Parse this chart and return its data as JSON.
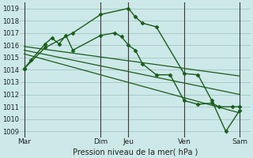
{
  "background_color": "#cce8e8",
  "grid_color": "#aacccc",
  "line_color": "#1a5c1a",
  "marker_color": "#1a5c1a",
  "xlabel": "Pression niveau de la mer( hPa )",
  "ylim": [
    1008.5,
    1019.5
  ],
  "yticks": [
    1009,
    1010,
    1011,
    1012,
    1013,
    1014,
    1015,
    1016,
    1017,
    1018,
    1019
  ],
  "xlim": [
    -0.3,
    16.3
  ],
  "xtick_labels": [
    "Mar",
    "Dim",
    "Jeu",
    "Ven",
    "Sam"
  ],
  "xtick_positions": [
    0,
    5.5,
    7.5,
    11.5,
    15.5
  ],
  "vlines": [
    0,
    5.5,
    7.5,
    11.5,
    15.5
  ],
  "series": [
    {
      "x": [
        0,
        0.5,
        1.5,
        2.0,
        2.5,
        3.0,
        3.5,
        5.5,
        6.5,
        7.0,
        7.5,
        8.0,
        8.5,
        9.5,
        10.5,
        11.5,
        12.5,
        13.5,
        14.0,
        15.0,
        15.5
      ],
      "y": [
        1014.1,
        1014.8,
        1016.1,
        1016.6,
        1016.1,
        1016.8,
        1015.6,
        1016.8,
        1017.0,
        1016.7,
        1016.0,
        1015.6,
        1014.5,
        1013.6,
        1013.6,
        1011.5,
        1011.2,
        1011.3,
        1011.0,
        1011.0,
        1011.0
      ],
      "marker": "D",
      "markersize": 2.5,
      "linewidth": 1.0,
      "draw_markers_at": [
        0,
        1.5,
        2.0,
        2.5,
        3.5,
        5.5,
        6.5,
        7.5,
        8.5,
        9.5,
        10.5,
        11.5,
        12.5,
        15.5
      ]
    },
    {
      "x": [
        0,
        1.5,
        3.5,
        5.5,
        7.5,
        8.0,
        8.5,
        9.5,
        11.5,
        12.5,
        13.5,
        14.5,
        15.5
      ],
      "y": [
        1014.1,
        1015.8,
        1017.0,
        1018.5,
        1019.0,
        1018.3,
        1017.8,
        1017.5,
        1013.7,
        1013.6,
        1011.5,
        1009.0,
        1010.7
      ],
      "marker": "D",
      "markersize": 2.5,
      "linewidth": 1.0
    },
    {
      "x": [
        0,
        15.5
      ],
      "y": [
        1015.9,
        1013.5
      ],
      "marker": null,
      "markersize": 0,
      "linewidth": 0.9
    },
    {
      "x": [
        0,
        15.5
      ],
      "y": [
        1015.6,
        1012.0
      ],
      "marker": null,
      "markersize": 0,
      "linewidth": 0.9
    },
    {
      "x": [
        0,
        15.5
      ],
      "y": [
        1015.3,
        1010.5
      ],
      "marker": null,
      "markersize": 0,
      "linewidth": 0.9
    }
  ]
}
